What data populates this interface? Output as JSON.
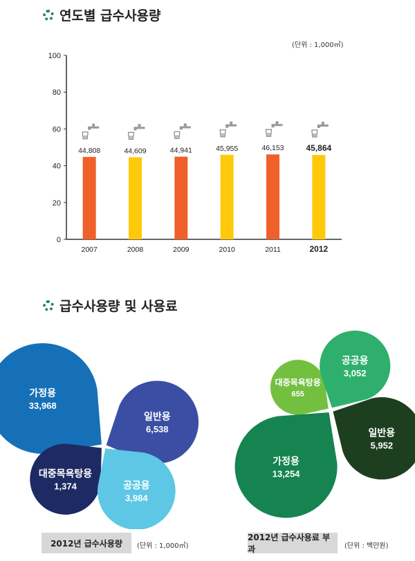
{
  "section1": {
    "title": "연도별 급수사용량",
    "unit": "(단위 : 1,000㎥)"
  },
  "section2": {
    "title": "급수사용량 및 사용료"
  },
  "colors": {
    "orange": "#f0602a",
    "yellow": "#ffc90b",
    "axis": "#333333",
    "green_ring": "#1f8a4c"
  },
  "chart_data": [
    {
      "type": "bar",
      "title": "연도별 급수사용량",
      "unit": "(단위 : 1,000㎥)",
      "categories": [
        "2007",
        "2008",
        "2009",
        "2010",
        "2011",
        "2012"
      ],
      "values": [
        44.808,
        44.609,
        44.941,
        45.955,
        46.153,
        45.864
      ],
      "value_labels": [
        "44,808",
        "44,609",
        "44,941",
        "45,955",
        "46,153",
        "45,864"
      ],
      "bar_colors": [
        "#f0602a",
        "#ffc90b",
        "#f0602a",
        "#ffc90b",
        "#f0602a",
        "#ffc90b"
      ],
      "highlight": "2012",
      "ylim": [
        0,
        100
      ],
      "yticks": [
        0,
        20,
        40,
        60,
        80,
        100
      ],
      "grid": false
    },
    {
      "type": "pie",
      "title": "2012년 급수사용량",
      "unit": "(단위 : 1,000㎥)",
      "slices": [
        {
          "label": "가정용",
          "value": 33968,
          "value_label": "33,968",
          "color": "#1570b8"
        },
        {
          "label": "일반용",
          "value": 6538,
          "value_label": "6,538",
          "color": "#3a4fa3"
        },
        {
          "label": "대중목욕탕용",
          "value": 1374,
          "value_label": "1,374",
          "color": "#1e2a63"
        },
        {
          "label": "공공용",
          "value": 3984,
          "value_label": "3,984",
          "color": "#5ec7e6"
        }
      ]
    },
    {
      "type": "pie",
      "title": "2012년 급수사용료 부과",
      "unit": "(단위 : 백만원)",
      "slices": [
        {
          "label": "대중목욕탕용",
          "value": 655,
          "value_label": "655",
          "color": "#73c041"
        },
        {
          "label": "공공용",
          "value": 3052,
          "value_label": "3,052",
          "color": "#2eb06c"
        },
        {
          "label": "가정용",
          "value": 13254,
          "value_label": "13,254",
          "color": "#158451"
        },
        {
          "label": "일반용",
          "value": 5952,
          "value_label": "5,952",
          "color": "#1d3f1f"
        }
      ]
    }
  ]
}
